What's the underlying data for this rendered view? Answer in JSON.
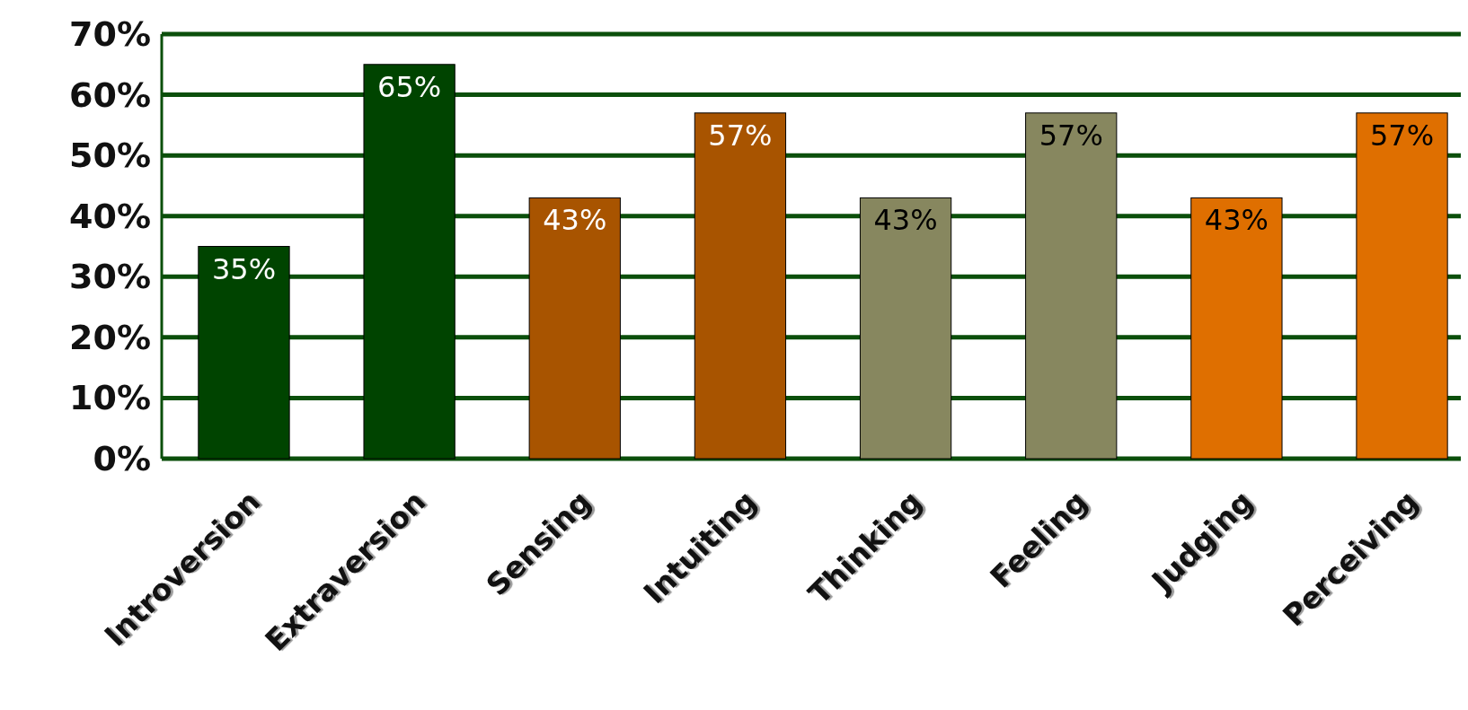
{
  "chart_data": {
    "type": "bar",
    "categories": [
      "Introversion",
      "Extraversion",
      "Sensing",
      "Intuiting",
      "Thinking",
      "Feeling",
      "Judging",
      "Perceiving"
    ],
    "values": [
      35,
      65,
      43,
      57,
      43,
      57,
      43,
      57
    ],
    "colors": [
      "#004400",
      "#004400",
      "#a85400",
      "#a85400",
      "#87875f",
      "#87875f",
      "#df6f00",
      "#df6f00"
    ],
    "value_labels": [
      "35%",
      "65%",
      "43%",
      "57%",
      "43%",
      "57%",
      "43%",
      "57%"
    ],
    "ylim": [
      0,
      70
    ],
    "yticks": [
      {
        "value": 0,
        "label": "0%"
      },
      {
        "value": 10,
        "label": "10%"
      },
      {
        "value": 20,
        "label": "20%"
      },
      {
        "value": 30,
        "label": "30%"
      },
      {
        "value": 40,
        "label": "40%"
      },
      {
        "value": 50,
        "label": "50%"
      },
      {
        "value": 60,
        "label": "60%"
      },
      {
        "value": 70,
        "label": "70%"
      }
    ],
    "grid": "y"
  }
}
